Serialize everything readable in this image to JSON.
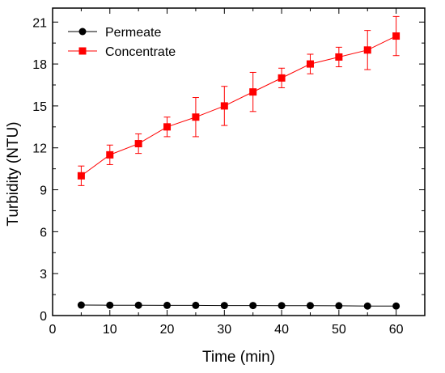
{
  "chart_data": {
    "type": "line",
    "title": "",
    "xlabel": "Time (min)",
    "ylabel": "Turbidity (NTU)",
    "xlim": [
      0,
      65
    ],
    "ylim": [
      0,
      22
    ],
    "xticks": [
      0,
      10,
      20,
      30,
      40,
      50,
      60
    ],
    "xtick_labels": [
      "0",
      "10",
      "20",
      "30",
      "40",
      "50",
      "60"
    ],
    "yticks": [
      0,
      3,
      6,
      9,
      12,
      15,
      18,
      21
    ],
    "ytick_labels": [
      "0",
      "3",
      "6",
      "9",
      "12",
      "15",
      "18",
      "21"
    ],
    "grid": false,
    "legend_position": "top-left",
    "x": [
      5,
      10,
      15,
      20,
      25,
      30,
      35,
      40,
      45,
      50,
      55,
      60
    ],
    "series": [
      {
        "name": "Permeate",
        "color": "#000000",
        "marker": "circle",
        "values": [
          0.75,
          0.74,
          0.74,
          0.73,
          0.73,
          0.72,
          0.72,
          0.71,
          0.71,
          0.7,
          0.68,
          0.68
        ],
        "errors": [
          0.05,
          0.05,
          0.05,
          0.05,
          0.05,
          0.05,
          0.05,
          0.05,
          0.05,
          0.05,
          0.05,
          0.05
        ]
      },
      {
        "name": "Concentrate",
        "color": "#ff0000",
        "marker": "square",
        "values": [
          10.0,
          11.5,
          12.3,
          13.5,
          14.2,
          15.0,
          16.0,
          17.0,
          18.0,
          18.5,
          19.0,
          20.0
        ],
        "errors": [
          0.7,
          0.7,
          0.7,
          0.7,
          1.4,
          1.4,
          1.4,
          0.7,
          0.7,
          0.7,
          1.4,
          1.4
        ]
      }
    ]
  }
}
